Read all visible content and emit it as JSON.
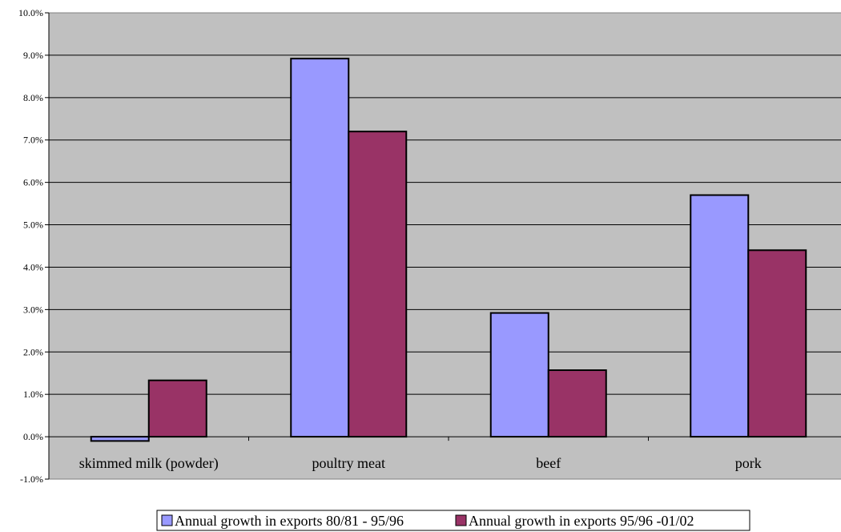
{
  "chart_data": {
    "type": "bar",
    "categories": [
      "skimmed milk (powder)",
      "poultry meat",
      "beef",
      "pork"
    ],
    "series": [
      {
        "name": "Annual growth in exports 80/81 - 95/96",
        "values": [
          -0.1,
          8.92,
          2.92,
          5.7
        ],
        "color": "#9999ff"
      },
      {
        "name": "Annual growth in exports 95/96 -01/02",
        "values": [
          1.33,
          7.2,
          1.57,
          4.4
        ],
        "color": "#993366"
      }
    ],
    "ylim": [
      -1.0,
      10.0
    ],
    "yticks": [
      "-1.0%",
      "0.0%",
      "1.0%",
      "2.0%",
      "3.0%",
      "4.0%",
      "5.0%",
      "6.0%",
      "7.0%",
      "8.0%",
      "9.0%",
      "10.0%"
    ],
    "ytick_values": [
      -1,
      0,
      1,
      2,
      3,
      4,
      5,
      6,
      7,
      8,
      9,
      10
    ],
    "y_unit": "%",
    "grid": true,
    "legend": "bottom-center",
    "plot_background": "#c0c0c0",
    "title": "",
    "xlabel": "",
    "ylabel": ""
  }
}
